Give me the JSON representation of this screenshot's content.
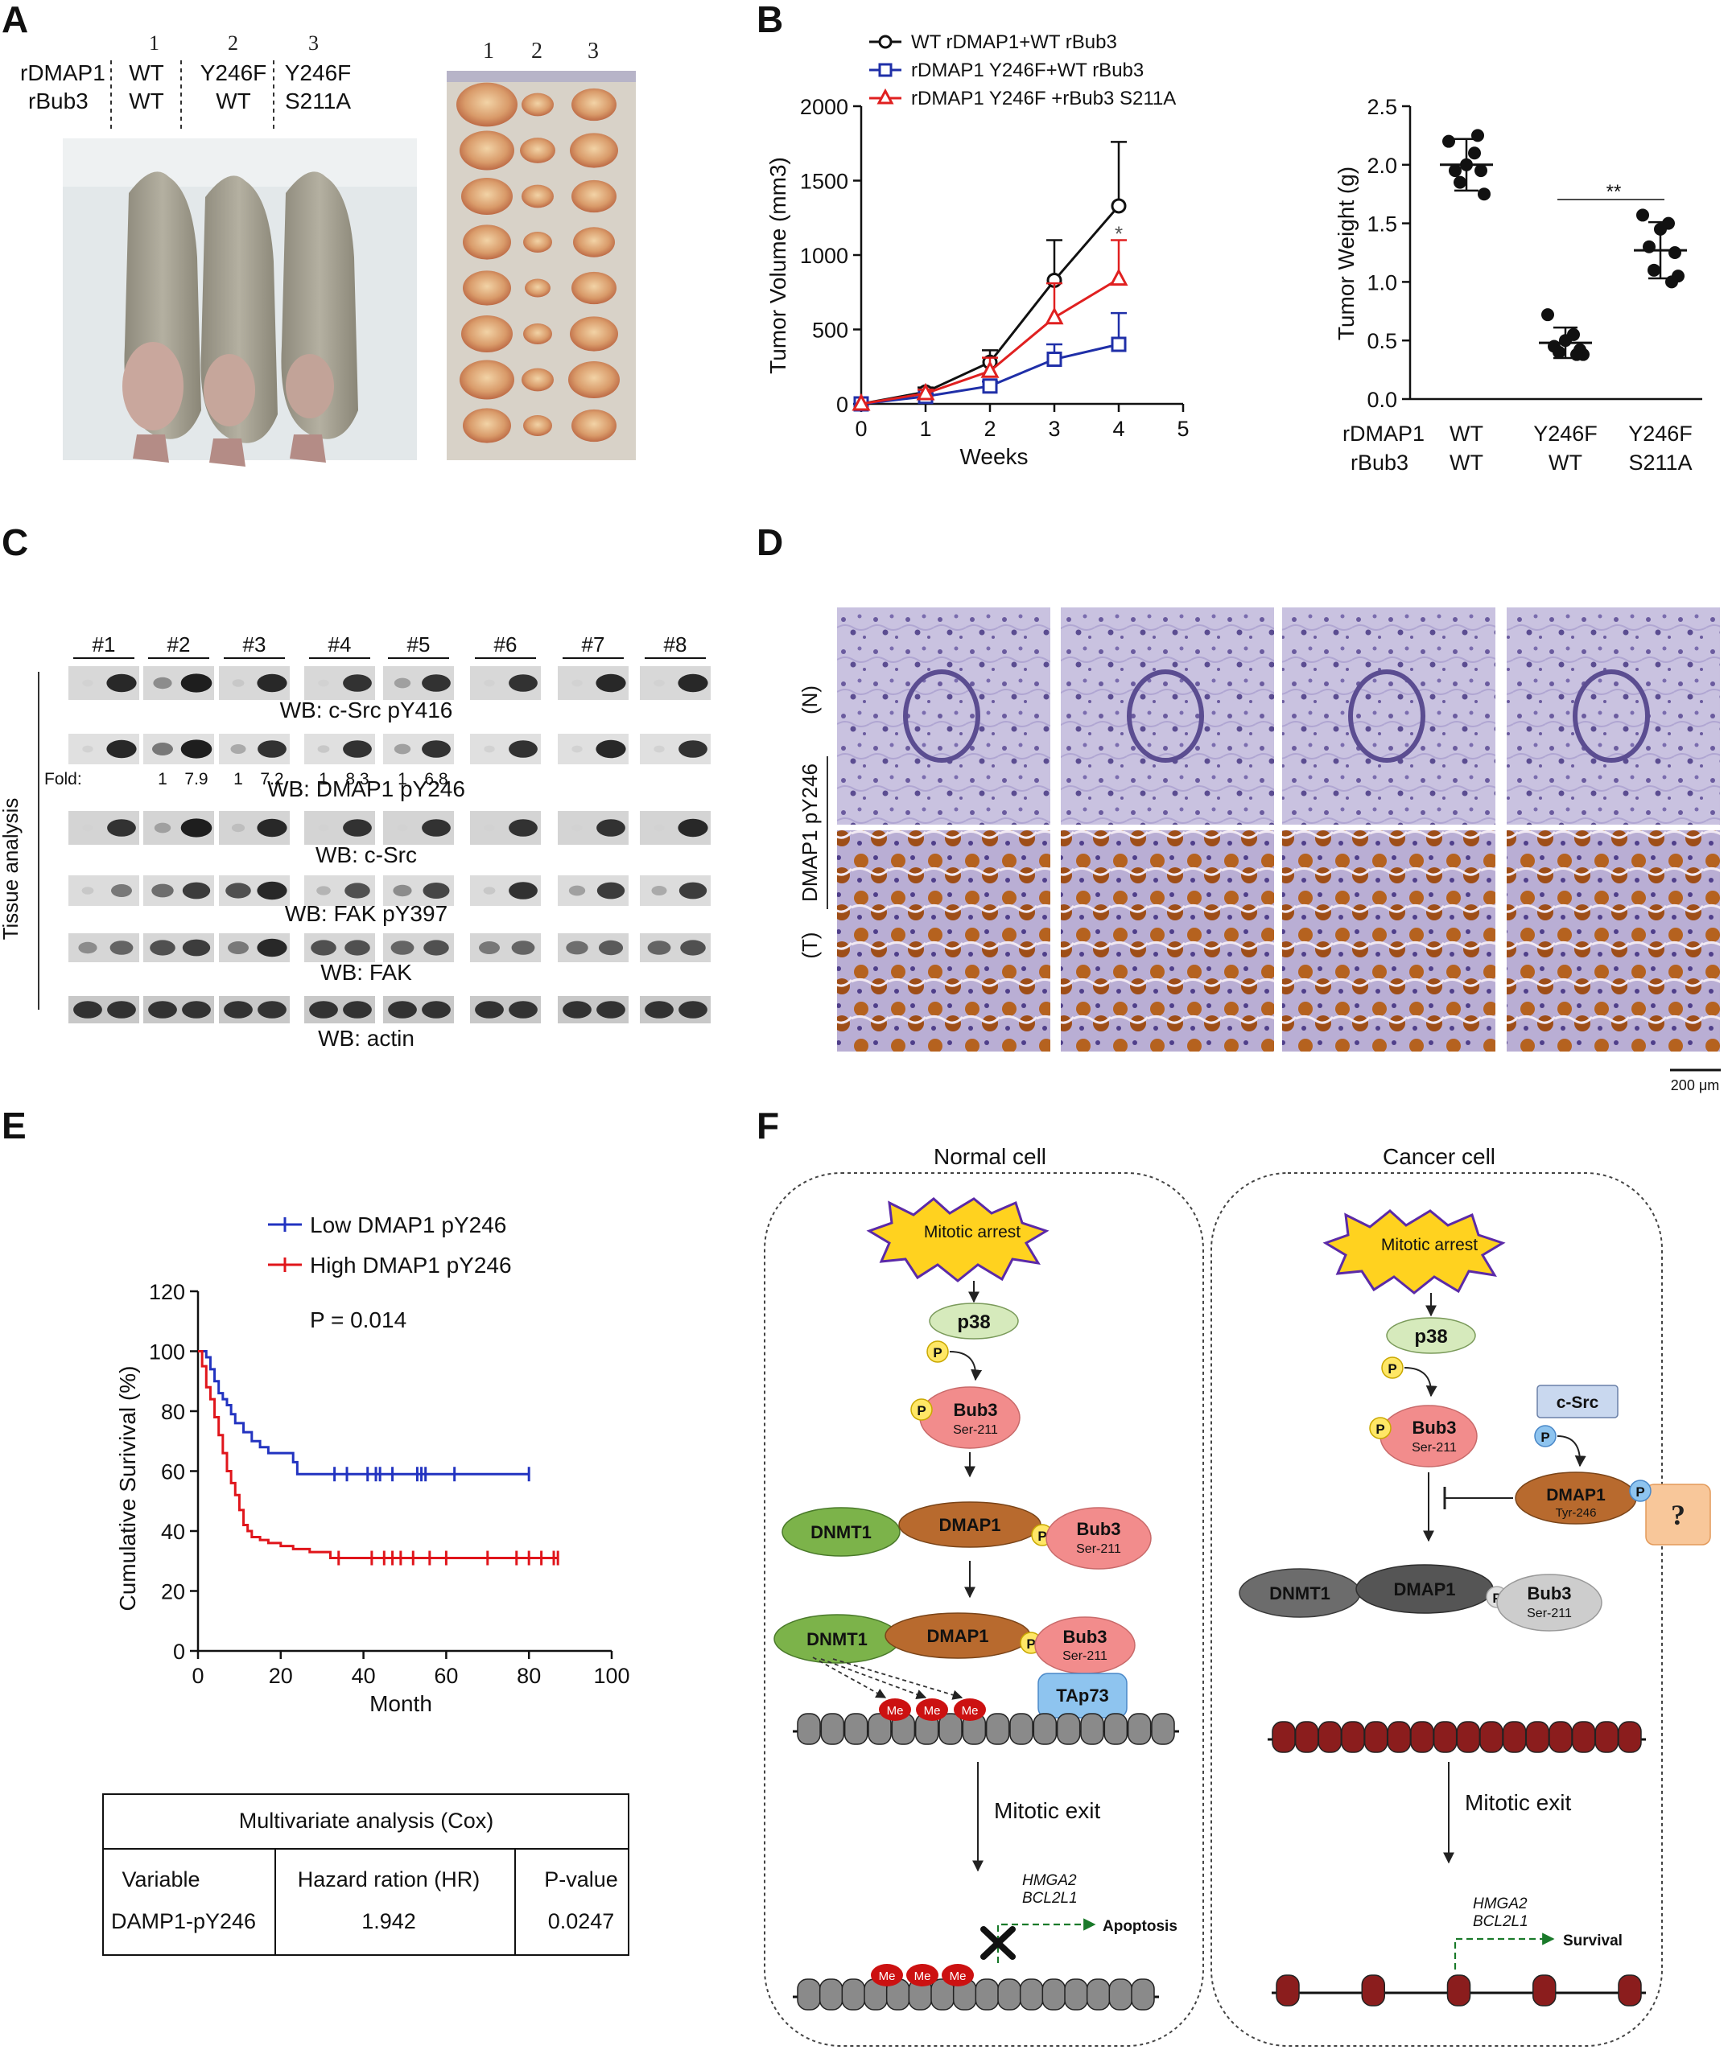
{
  "panelA": {
    "label": "A",
    "lane_numbers": [
      "1",
      "2",
      "3"
    ],
    "rdmap1_label": "rDMAP1",
    "rbub3_label": "rBub3",
    "rdmap1_values": [
      "WT",
      "Y246F",
      "Y246F"
    ],
    "rbub3_values": [
      "WT",
      "WT",
      "S211A"
    ],
    "tumor_lane_numbers": [
      "1",
      "2",
      "3"
    ]
  },
  "panelB": {
    "label": "B"
  },
  "panelC": {
    "label": "C",
    "side_label": "Tissue analysis",
    "samples": [
      "#1",
      "#2",
      "#3",
      "#4",
      "#5",
      "#6",
      "#7",
      "#8"
    ],
    "blots": [
      "WB: c-Src pY416",
      "WB: DMAP1 pY246",
      "WB: c-Src",
      "WB: FAK pY397",
      "WB: FAK",
      "WB: actin"
    ],
    "fold_label": "Fold:",
    "fold_values": [
      {
        "sample": 2,
        "values": [
          "1",
          "7.9"
        ]
      },
      {
        "sample": 3,
        "values": [
          "1",
          "7.2"
        ]
      },
      {
        "sample": 4,
        "values": [
          "1",
          "8.3"
        ]
      },
      {
        "sample": 5,
        "values": [
          "1",
          "6.8"
        ]
      }
    ]
  },
  "panelD": {
    "label": "D",
    "row_label_n": "(N)",
    "stain_label": "DMAP1 pY246",
    "row_label_t": "(T)",
    "scale_bar": "200 μm"
  },
  "panelE": {
    "label": "E",
    "p_value": "P = 0.014",
    "table": {
      "title": "Multivariate analysis (Cox)",
      "headers": [
        "Variable",
        "Hazard ration (HR)",
        "P-value"
      ],
      "row": [
        "DAMP1-pY246",
        "1.942",
        "0.0247"
      ]
    }
  },
  "panelF": {
    "label": "F",
    "normal": {
      "title": "Normal cell",
      "arrest": "Mitotic arrest",
      "p38": "p38",
      "p": "P",
      "bub3": "Bub3",
      "ser211": "Ser-211",
      "dnmt1": "DNMT1",
      "dmap1": "DMAP1",
      "tap73": "TAp73",
      "me": "Me",
      "exit": "Mitotic exit",
      "gene1": "HMGA2",
      "gene2": "BCL2L1",
      "outcome": "Apoptosis"
    },
    "cancer": {
      "title": "Cancer cell",
      "arrest": "Mitotic arrest",
      "p38": "p38",
      "p": "P",
      "bub3": "Bub3",
      "ser211": "Ser-211",
      "csrc": "c-Src",
      "dmap1": "DMAP1",
      "tyr246": "Tyr-246",
      "question": "?",
      "dnmt1": "DNMT1",
      "exit": "Mitotic exit",
      "gene1": "HMGA2",
      "gene2": "BCL2L1",
      "outcome": "Survival"
    }
  },
  "colors": {
    "wt": "#111111",
    "y246f": "#1f2fa8",
    "s211a": "#e02020",
    "low": "#2233c0",
    "high": "#e0151b",
    "star": "#ffd21f",
    "bub3": "#f08080",
    "dnmt1": "#7cb34a",
    "dmap1": "#b86a2e",
    "tap73": "#6aa8e8",
    "me": "#cc1111",
    "nucleosome_gray": "#8a8a8a",
    "nucleosome_red": "#8b1d1d"
  },
  "chart_data": [
    {
      "type": "line",
      "xlabel": "Weeks",
      "ylabel": "Tumor Volume (mm3)",
      "xlim": [
        0,
        5
      ],
      "ylim": [
        0,
        2000
      ],
      "xticks": [
        "0",
        "1",
        "2",
        "3",
        "4",
        "5"
      ],
      "yticks": [
        "0",
        "500",
        "1000",
        "1500",
        "2000"
      ],
      "annotation": "*",
      "series": [
        {
          "name": "WT rDMAP1+WT rBub3",
          "x": [
            0,
            1,
            2,
            3,
            4
          ],
          "y": [
            0,
            80,
            280,
            830,
            1330
          ],
          "err": [
            0,
            30,
            80,
            270,
            430
          ]
        },
        {
          "name": "rDMAP1 Y246F+WT rBub3",
          "x": [
            0,
            1,
            2,
            3,
            4
          ],
          "y": [
            0,
            50,
            120,
            300,
            400
          ],
          "err": [
            0,
            20,
            30,
            100,
            210
          ]
        },
        {
          "name": "rDMAP1 Y246F +rBub3 S211A",
          "x": [
            0,
            1,
            2,
            3,
            4
          ],
          "y": [
            0,
            70,
            220,
            580,
            840
          ],
          "err": [
            0,
            25,
            90,
            230,
            260
          ]
        }
      ]
    },
    {
      "type": "scatter",
      "ylabel": "Tumor Weight (g)",
      "ylim": [
        0,
        2.5
      ],
      "yticks": [
        "0.0",
        "0.5",
        "1.0",
        "1.5",
        "2.0",
        "2.5"
      ],
      "row1_label": "rDMAP1",
      "row2_label": "rBub3",
      "categories": [
        [
          "WT",
          "WT"
        ],
        [
          "Y246F",
          "WT"
        ],
        [
          "Y246F",
          "S211A"
        ]
      ],
      "annotation": "**",
      "groups": [
        {
          "mean": 2.0,
          "sd": 0.22,
          "points": [
            2.2,
            2.1,
            2.0,
            1.95,
            1.95,
            1.85,
            1.75,
            2.25
          ]
        },
        {
          "mean": 0.48,
          "sd": 0.13,
          "points": [
            0.72,
            0.55,
            0.5,
            0.45,
            0.42,
            0.4,
            0.38,
            0.38
          ]
        },
        {
          "mean": 1.27,
          "sd": 0.24,
          "points": [
            1.57,
            1.5,
            1.45,
            1.3,
            1.25,
            1.1,
            1.05,
            1.0
          ]
        }
      ]
    },
    {
      "type": "line",
      "xlabel": "Month",
      "ylabel": "Cumulative Surivival (%)",
      "xlim": [
        0,
        100
      ],
      "ylim": [
        0,
        120
      ],
      "xticks": [
        "0",
        "20",
        "40",
        "60",
        "80",
        "100"
      ],
      "yticks": [
        "0",
        "20",
        "40",
        "60",
        "80",
        "100",
        "120"
      ],
      "series": [
        {
          "name": "Low  DMAP1 pY246",
          "x": [
            0,
            2,
            3,
            4,
            5,
            6,
            7,
            8,
            9,
            11,
            13,
            15,
            17,
            19,
            21,
            23,
            24,
            80
          ],
          "y": [
            100,
            98,
            94,
            90,
            86,
            84,
            82,
            79,
            76,
            73,
            70,
            68,
            66,
            66,
            66,
            63,
            59,
            59
          ],
          "censor": [
            33,
            36,
            41,
            43,
            44,
            47,
            53,
            54,
            55,
            62,
            80
          ]
        },
        {
          "name": "High DMAP1 pY246",
          "x": [
            0,
            1,
            2,
            3,
            4,
            5,
            6,
            7,
            8,
            9,
            10,
            11,
            12,
            13,
            15,
            17,
            20,
            23,
            27,
            32,
            87
          ],
          "y": [
            100,
            95,
            88,
            84,
            78,
            72,
            66,
            60,
            56,
            52,
            47,
            42,
            40,
            38,
            37,
            36,
            35,
            34,
            33,
            31,
            31
          ],
          "censor": [
            34,
            42,
            45,
            47,
            49,
            52,
            56,
            60,
            70,
            77,
            80,
            83,
            86,
            87
          ]
        }
      ]
    }
  ]
}
